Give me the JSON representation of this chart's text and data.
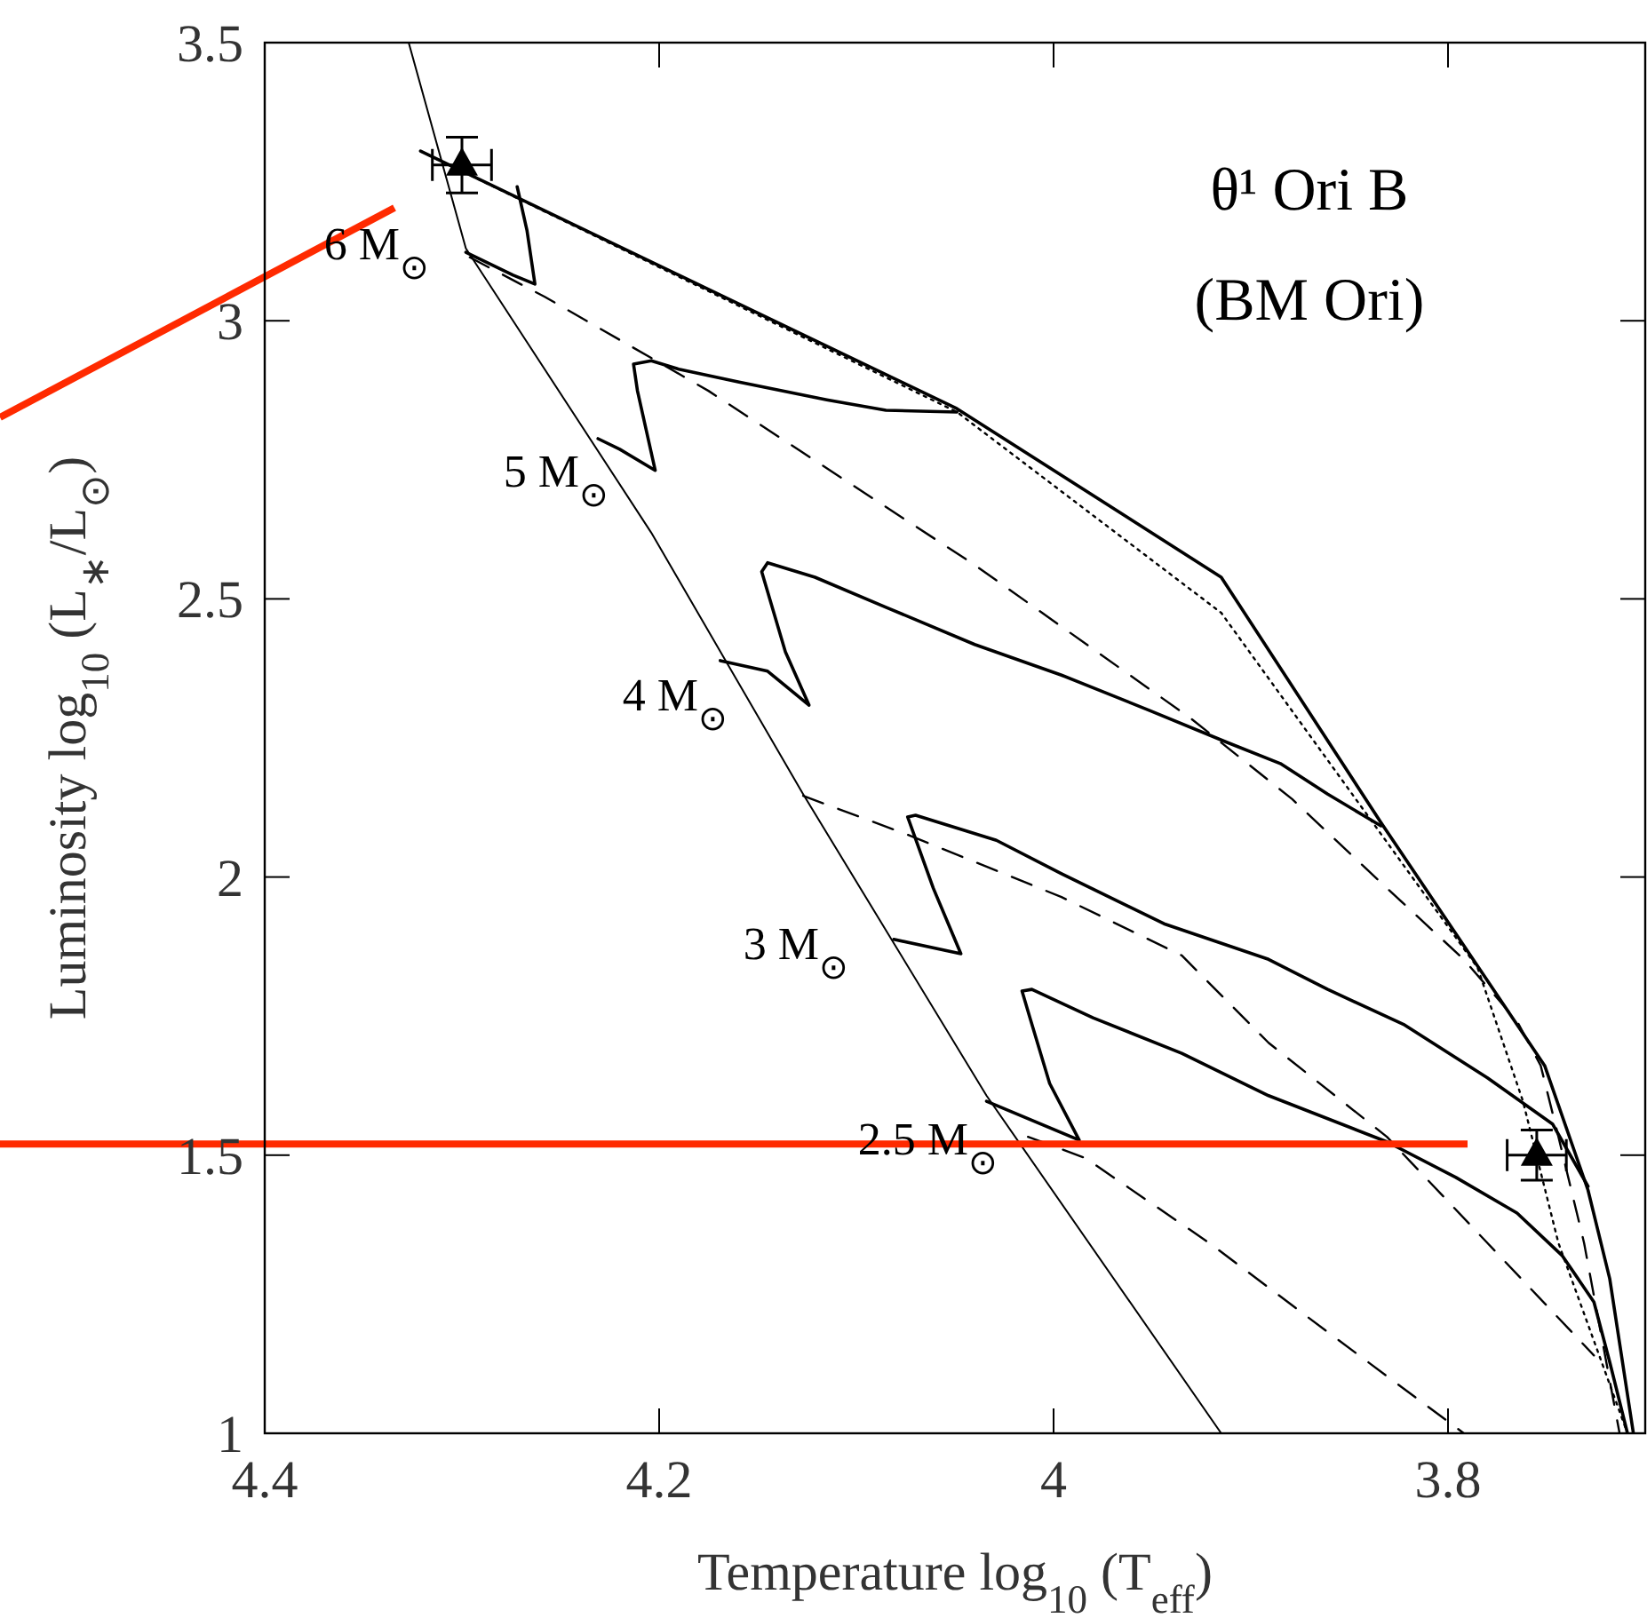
{
  "chart_data": {
    "type": "line",
    "xlabel": "Temperature log$_{10}$ (T$_{eff}$)",
    "ylabel": "Luminosity log$_{10}$ (L$_{∗}$/L$_{⊙}$)",
    "xlim": [
      4.4,
      3.7
    ],
    "ylim": [
      1,
      3.5
    ],
    "xticks": [
      4.4,
      4.2,
      4,
      3.8
    ],
    "yticks": [
      1,
      1.5,
      2,
      2.5,
      3,
      3.5
    ],
    "grid": false,
    "series": [
      {
        "line_style": "solid",
        "color": "#000000",
        "x": [
          4.327,
          4.298,
          4.204,
          4.127,
          4.034,
          3.915
        ],
        "values": [
          3.5,
          3.13,
          2.619,
          2.149,
          1.607,
          1.0
        ]
      },
      {
        "line_style": "solid",
        "color": "#000000",
        "x": [
          4.321,
          4.049,
          3.915,
          3.834,
          3.751,
          3.729,
          3.718,
          3.706
        ],
        "values": [
          3.305,
          2.842,
          2.539,
          2.098,
          1.661,
          1.437,
          1.278,
          1.0
        ]
      },
      {
        "line_style": "dotted",
        "color": "#000000",
        "x": [
          4.321,
          4.049,
          3.915,
          3.785,
          3.762,
          3.744,
          3.709
        ],
        "values": [
          3.305,
          2.836,
          2.475,
          1.837,
          1.597,
          1.342,
          1.0
        ]
      },
      {
        "line_style": "solid",
        "color": "#000000",
        "x": [
          4.298,
          4.274,
          4.263,
          4.267,
          4.272
        ],
        "values": [
          3.123,
          3.082,
          3.066,
          3.162,
          3.241
        ]
      },
      {
        "line_style": "solid",
        "color": "#000000",
        "x": [
          4.231,
          4.22,
          4.202,
          4.211,
          4.213,
          4.204,
          4.19,
          4.16,
          4.115,
          4.085,
          4.049
        ],
        "values": [
          2.788,
          2.769,
          2.731,
          2.874,
          2.922,
          2.928,
          2.913,
          2.89,
          2.858,
          2.839,
          2.836
        ]
      },
      {
        "line_style": "solid",
        "color": "#000000",
        "x": [
          4.169,
          4.145,
          4.124,
          4.136,
          4.148,
          4.145,
          4.121,
          4.085,
          4.04,
          3.996,
          3.951,
          3.912,
          3.885,
          3.861,
          3.834
        ],
        "values": [
          2.389,
          2.37,
          2.309,
          2.405,
          2.549,
          2.565,
          2.539,
          2.485,
          2.418,
          2.363,
          2.299,
          2.242,
          2.204,
          2.149,
          2.092
        ]
      },
      {
        "line_style": "solid",
        "color": "#000000",
        "x": [
          4.081,
          4.047,
          4.061,
          4.074,
          4.07,
          4.029,
          3.996,
          3.944,
          3.891,
          3.861,
          3.822,
          3.78,
          3.747,
          3.729
        ],
        "values": [
          1.888,
          1.862,
          1.98,
          2.108,
          2.111,
          2.066,
          2.006,
          1.916,
          1.852,
          1.798,
          1.734,
          1.639,
          1.556,
          1.444
        ]
      },
      {
        "line_style": "solid",
        "color": "#000000",
        "x": [
          4.034,
          3.987,
          4.002,
          4.012,
          4.016,
          4.011,
          3.98,
          3.935,
          3.891,
          3.831,
          3.796,
          3.765,
          3.742,
          3.726,
          3.718,
          3.709
        ],
        "values": [
          1.597,
          1.527,
          1.629,
          1.747,
          1.795,
          1.798,
          1.747,
          1.683,
          1.607,
          1.524,
          1.46,
          1.396,
          1.319,
          1.236,
          1.128,
          1.0
        ]
      },
      {
        "line_style": "dashed",
        "color": "#000000",
        "x": [
          4.296,
          4.258,
          4.175,
          4.04,
          3.93,
          3.879,
          3.831,
          3.792,
          3.765,
          3.753,
          3.744,
          3.731,
          3.713
        ],
        "values": [
          3.114,
          3.043,
          2.874,
          2.561,
          2.284,
          2.14,
          1.98,
          1.852,
          1.741,
          1.661,
          1.533,
          1.342,
          1.0
        ]
      },
      {
        "line_style": "dashed",
        "color": "#000000",
        "x": [
          4.127,
          4.074,
          3.996,
          3.935,
          3.891,
          3.831,
          3.78,
          3.726
        ],
        "values": [
          2.146,
          2.076,
          1.964,
          1.859,
          1.702,
          1.533,
          1.342,
          1.14
        ]
      },
      {
        "line_style": "dashed",
        "color": "#000000",
        "x": [
          4.013,
          3.984,
          3.921,
          3.861,
          3.792
        ],
        "values": [
          1.533,
          1.495,
          1.342,
          1.182,
          1.0
        ]
      },
      {
        "type": "scatter",
        "marker": "triangle",
        "color": "#000000",
        "x": [
          4.3,
          3.755
        ],
        "values": [
          3.28,
          1.5
        ],
        "errors": [
          0.05,
          0.045
        ],
        "xerrors": [
          0.015,
          0.015
        ]
      }
    ],
    "ref_lines": [
      {
        "axis": "y",
        "value": 1.52,
        "color": "#ff2a00",
        "line_style": "solid"
      }
    ],
    "annotations": [
      "θ¹ Ori B",
      "(BM Ori)",
      "6 M$_{⊙}$",
      "5 M$_{⊙}$",
      "4 M$_{⊙}$",
      "3 M$_{⊙}$",
      "2.5 M$_{⊙}$"
    ]
  }
}
